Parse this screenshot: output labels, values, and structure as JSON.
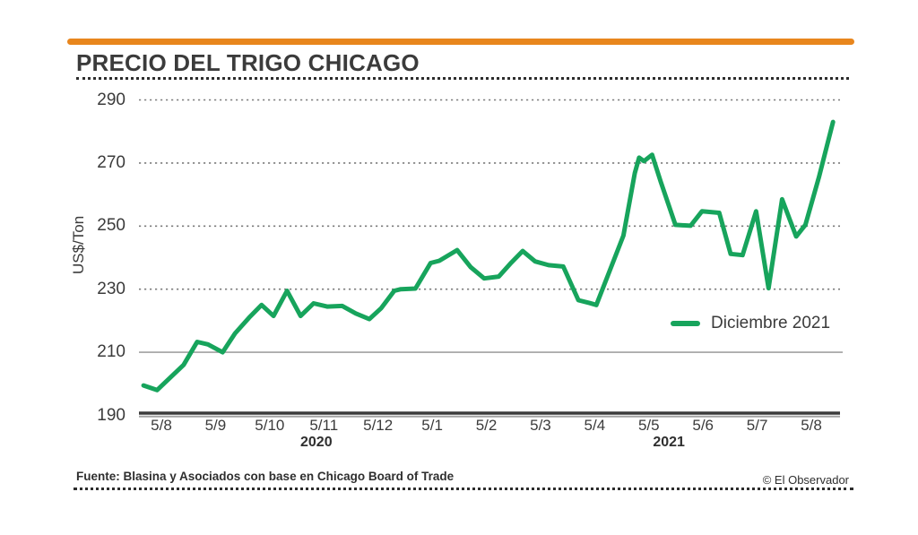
{
  "header": {
    "title": "PRECIO DEL TRIGO CHICAGO"
  },
  "colors": {
    "accent_bar": "#e8861d",
    "line_green": "#17a45c",
    "text_dark": "#3b3b3b",
    "gridline_gray": "#7d7d7d"
  },
  "legend": {
    "label": "Diciembre 2021",
    "color": "#17a45c"
  },
  "footer": {
    "source": "Fuente: Blasina y Asociados con base en Chicago Board of Trade",
    "copyright": "© El Observador"
  },
  "chart_data": {
    "type": "line",
    "title": "PRECIO DEL TRIGO CHICAGO",
    "ylabel": "US$/Ton",
    "ylim": [
      190,
      290
    ],
    "yticks": [
      190,
      210,
      230,
      250,
      270,
      290
    ],
    "gridlines": {
      "dotted_at": [
        230,
        250,
        270,
        290
      ],
      "solid_at": [
        210
      ],
      "baseline_at": 190
    },
    "xticks": [
      "5/8",
      "5/9",
      "5/10",
      "5/11",
      "5/12",
      "5/1",
      "5/2",
      "5/3",
      "5/4",
      "5/5",
      "5/6",
      "5/7",
      "5/8"
    ],
    "year_markers": [
      {
        "label": "2020",
        "month_offset": 2.86
      },
      {
        "label": "2021",
        "month_offset": 9.37
      }
    ],
    "legend_position": "center-right",
    "series": [
      {
        "name": "Diciembre 2021",
        "color": "#17a45c",
        "points": [
          [
            -0.33,
            199.5
          ],
          [
            -0.08,
            198
          ],
          [
            0.41,
            206
          ],
          [
            0.66,
            213.3
          ],
          [
            0.86,
            212.5
          ],
          [
            1.13,
            210
          ],
          [
            1.36,
            216
          ],
          [
            1.62,
            221
          ],
          [
            1.85,
            225
          ],
          [
            2.07,
            221.5
          ],
          [
            2.32,
            229.5
          ],
          [
            2.57,
            221.5
          ],
          [
            2.81,
            225.5
          ],
          [
            3.06,
            224.5
          ],
          [
            3.34,
            224.7
          ],
          [
            3.59,
            222.3
          ],
          [
            3.84,
            220.5
          ],
          [
            4.06,
            224
          ],
          [
            4.3,
            229.5
          ],
          [
            4.42,
            230
          ],
          [
            4.69,
            230.2
          ],
          [
            4.97,
            238.3
          ],
          [
            5.13,
            239
          ],
          [
            5.46,
            242.4
          ],
          [
            5.71,
            237
          ],
          [
            5.96,
            233.4
          ],
          [
            6.23,
            234
          ],
          [
            6.46,
            238.4
          ],
          [
            6.67,
            242.1
          ],
          [
            6.9,
            238.8
          ],
          [
            7.15,
            237.6
          ],
          [
            7.42,
            237.2
          ],
          [
            7.7,
            226.5
          ],
          [
            7.91,
            225.6
          ],
          [
            8.03,
            225
          ],
          [
            8.28,
            236
          ],
          [
            8.53,
            247
          ],
          [
            8.74,
            266.8
          ],
          [
            8.82,
            271.7
          ],
          [
            8.91,
            270.6
          ],
          [
            9.06,
            272.6
          ],
          [
            9.22,
            264
          ],
          [
            9.49,
            250.4
          ],
          [
            9.77,
            250.1
          ],
          [
            9.98,
            254.7
          ],
          [
            10.3,
            254.2
          ],
          [
            10.51,
            241.2
          ],
          [
            10.73,
            240.8
          ],
          [
            10.98,
            254.7
          ],
          [
            11.21,
            230.3
          ],
          [
            11.46,
            258.5
          ],
          [
            11.72,
            246.7
          ],
          [
            11.89,
            250.4
          ],
          [
            12.14,
            265.5
          ],
          [
            12.4,
            283
          ]
        ]
      }
    ]
  }
}
